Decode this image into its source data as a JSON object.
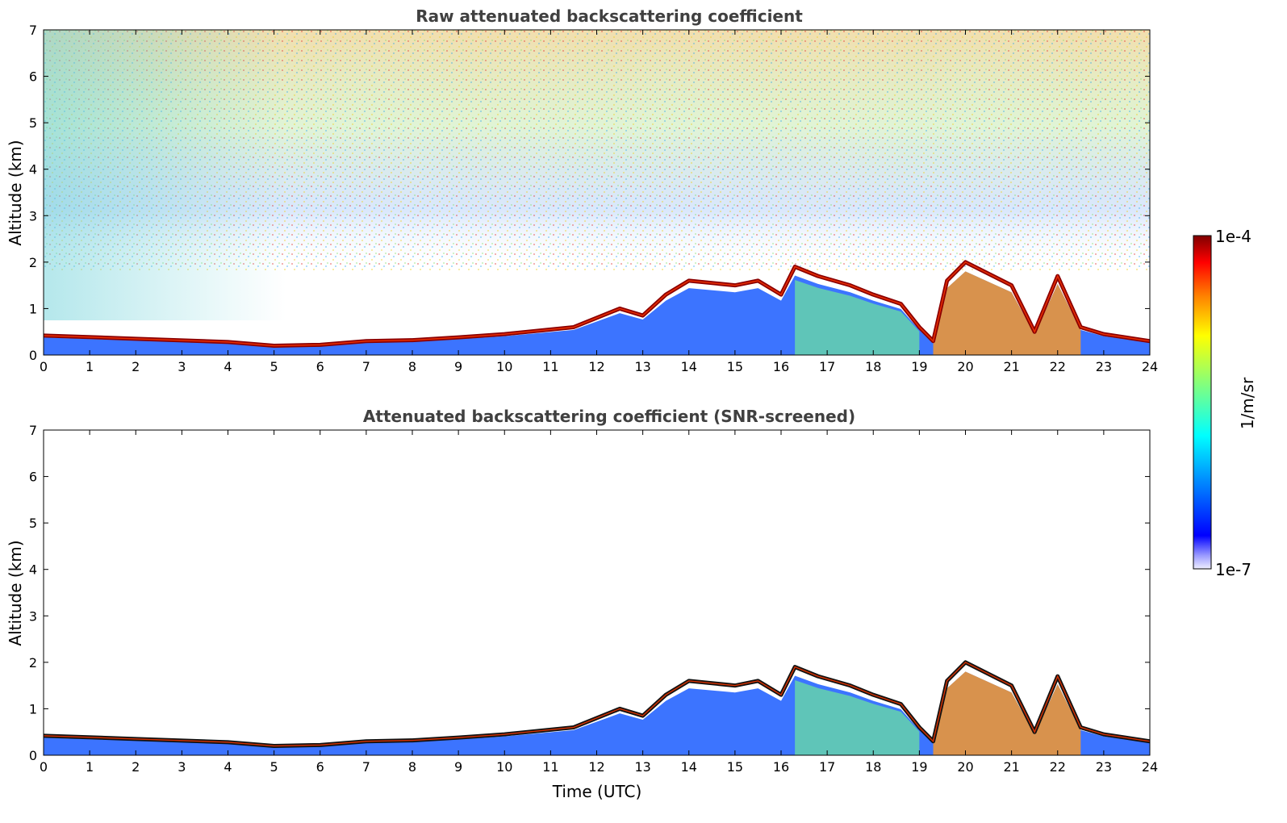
{
  "chart_data": [
    {
      "type": "heatmap",
      "title": "Raw attenuated backscattering coefficient",
      "xlabel": "",
      "ylabel": "Altitude (km)",
      "xlim": [
        0,
        24
      ],
      "ylim": [
        0,
        7
      ],
      "xticks": [
        "0",
        "1",
        "2",
        "3",
        "4",
        "5",
        "6",
        "7",
        "8",
        "9",
        "10",
        "11",
        "12",
        "13",
        "14",
        "15",
        "16",
        "17",
        "18",
        "19",
        "20",
        "21",
        "22",
        "23",
        "24"
      ],
      "yticks": [
        "0",
        "1",
        "2",
        "3",
        "4",
        "5",
        "6",
        "7"
      ],
      "layer_top_km": [
        [
          0,
          0.42
        ],
        [
          2,
          0.35
        ],
        [
          4,
          0.28
        ],
        [
          5,
          0.2
        ],
        [
          6,
          0.22
        ],
        [
          7,
          0.3
        ],
        [
          8,
          0.32
        ],
        [
          9,
          0.38
        ],
        [
          10,
          0.45
        ],
        [
          11,
          0.55
        ],
        [
          11.5,
          0.6
        ],
        [
          12,
          0.8
        ],
        [
          12.5,
          1.0
        ],
        [
          13,
          0.85
        ],
        [
          13.5,
          1.3
        ],
        [
          14,
          1.6
        ],
        [
          15,
          1.5
        ],
        [
          15.5,
          1.6
        ],
        [
          16,
          1.3
        ],
        [
          16.3,
          1.9
        ],
        [
          16.8,
          1.7
        ],
        [
          17.5,
          1.5
        ],
        [
          18,
          1.3
        ],
        [
          18.6,
          1.1
        ],
        [
          19,
          0.6
        ],
        [
          19.3,
          0.3
        ],
        [
          19.6,
          1.6
        ],
        [
          20,
          2.0
        ],
        [
          21,
          1.5
        ],
        [
          21.5,
          0.5
        ],
        [
          22,
          1.7
        ],
        [
          22.5,
          0.6
        ],
        [
          23,
          0.45
        ],
        [
          24,
          0.3
        ]
      ]
    },
    {
      "type": "heatmap",
      "title": "Attenuated backscattering coefficient (SNR-screened)",
      "xlabel": "Time (UTC)",
      "ylabel": "Altitude (km)",
      "xlim": [
        0,
        24
      ],
      "ylim": [
        0,
        7
      ],
      "xticks": [
        "0",
        "1",
        "2",
        "3",
        "4",
        "5",
        "6",
        "7",
        "8",
        "9",
        "10",
        "11",
        "12",
        "13",
        "14",
        "15",
        "16",
        "17",
        "18",
        "19",
        "20",
        "21",
        "22",
        "23",
        "24"
      ],
      "yticks": [
        "0",
        "1",
        "2",
        "3",
        "4",
        "5",
        "6",
        "7"
      ]
    }
  ],
  "colorbar": {
    "label": "1/m/sr",
    "max_label": "1e-4",
    "min_label": "1e-7",
    "scale": "log",
    "colormap": "jet"
  },
  "colors": {
    "title": "#404040",
    "high": "#800000",
    "low": "#0000ff"
  }
}
